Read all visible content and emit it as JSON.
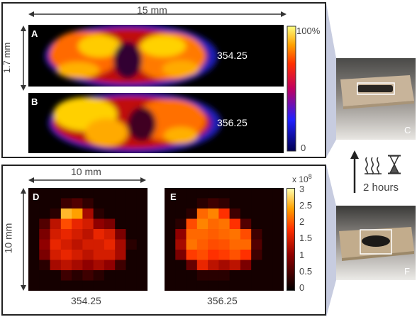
{
  "top_panel": {
    "width_label": "15 mm",
    "height_label": "1.7 mm",
    "image_a": {
      "letter": "A",
      "mz": "354.25"
    },
    "image_b": {
      "letter": "B",
      "mz": "356.25"
    },
    "colorbar": {
      "max_label": "100%",
      "min_label": "0"
    }
  },
  "bottom_panel": {
    "width_label": "10 mm",
    "height_label": "10 mm",
    "image_d": {
      "letter": "D",
      "mz": "354.25"
    },
    "image_e": {
      "letter": "E",
      "mz": "356.25"
    },
    "colorbar": {
      "multiplier_label": "x 10",
      "multiplier_exp": "8",
      "ticks": [
        "3",
        "2.5",
        "2",
        "1.5",
        "1",
        "0.5",
        "0"
      ]
    }
  },
  "photos": {
    "photo_c": {
      "letter": "C"
    },
    "photo_f": {
      "letter": "F"
    },
    "process_label": "2 hours"
  },
  "colors": {
    "frame": "#222222",
    "side_band": "#c7cce0",
    "arrow": "#222222"
  }
}
